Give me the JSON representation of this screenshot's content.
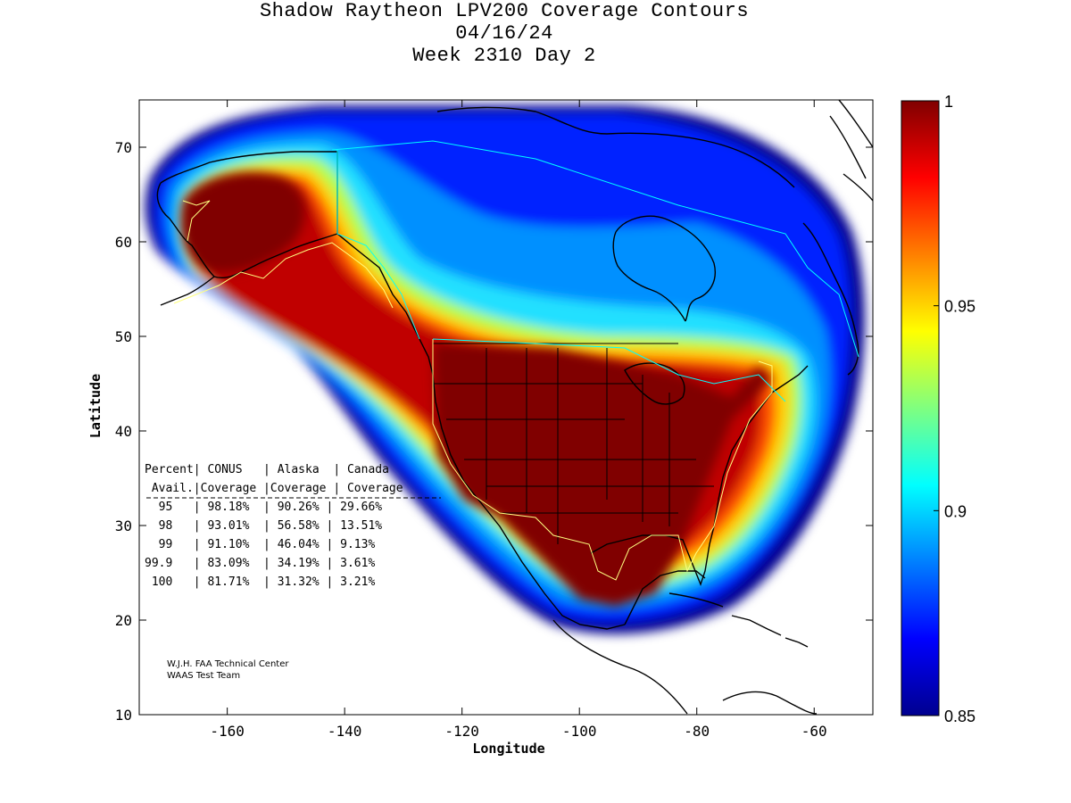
{
  "title": {
    "line1": "Shadow Raytheon LPV200 Coverage Contours",
    "line2": "04/16/24",
    "line3": "Week 2310 Day 2"
  },
  "axes": {
    "xlabel": "Longitude",
    "ylabel": "Latitude",
    "xlim": [
      -175,
      -50
    ],
    "ylim": [
      10,
      75
    ],
    "xticks": [
      -160,
      -140,
      -120,
      -100,
      -80,
      -60
    ],
    "yticks": [
      10,
      20,
      30,
      40,
      50,
      60,
      70
    ],
    "xtick_labels": [
      "-160",
      "-140",
      "-120",
      "-100",
      "-80",
      "-60"
    ],
    "ytick_labels": [
      "10",
      "20",
      "30",
      "40",
      "50",
      "60",
      "70"
    ]
  },
  "colorbar": {
    "range": [
      0.85,
      1
    ],
    "ticks": [
      0.85,
      0.9,
      0.95,
      1
    ],
    "tick_labels": [
      "0.85",
      "0.9",
      "0.95",
      "1"
    ],
    "colormap": "jet"
  },
  "stats_table": {
    "header1": "Percent| CONUS   | Alaska  | Canada",
    "header2": " Avail.|Coverage |Coverage | Coverage",
    "rows": [
      "  95   | 98.18%  | 90.26% | 29.66%",
      "  98   | 93.01%  | 56.58% | 13.51%",
      "  99   | 91.10%  | 46.04% | 9.13%",
      "99.9   | 83.09%  | 34.19% | 3.61%",
      " 100   | 81.71%  | 31.32% | 3.21%"
    ]
  },
  "credit": {
    "line1": "W.J.H. FAA Technical Center",
    "line2": "WAAS Test Team"
  },
  "colors": {
    "high": "#800000",
    "mid": "#ffff00",
    "low": "#00008f"
  }
}
